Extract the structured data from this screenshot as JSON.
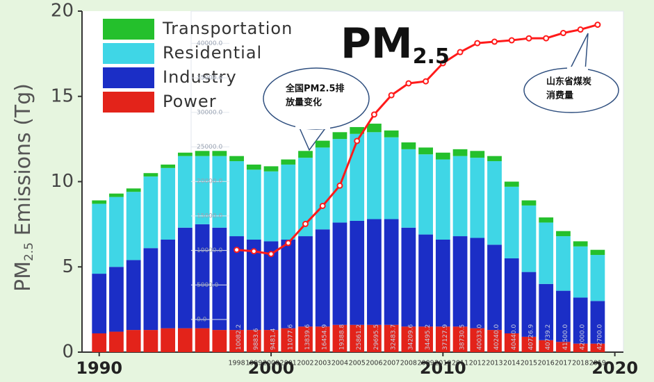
{
  "chart_data": [
    {
      "type": "bar",
      "stacked": true,
      "title": {
        "main": "PM",
        "sub": "2.5"
      },
      "ylabel": {
        "main": "PM",
        "sub": "2.5",
        "rest": " Emissions (Tg)"
      },
      "x": [
        1990,
        1991,
        1992,
        1993,
        1994,
        1995,
        1996,
        1997,
        1998,
        1999,
        2000,
        2001,
        2002,
        2003,
        2004,
        2005,
        2006,
        2007,
        2008,
        2009,
        2010,
        2011,
        2012,
        2013,
        2014,
        2015,
        2016,
        2017,
        2018,
        2019
      ],
      "xlim": [
        1989,
        2020.5
      ],
      "xticks": [
        1990,
        2000,
        2010,
        2020
      ],
      "ylim": [
        0,
        20
      ],
      "yticks": [
        0,
        5,
        10,
        15,
        20
      ],
      "legend": "top-left",
      "series": [
        {
          "name": "Power",
          "color": "#e3231a",
          "values": [
            1.1,
            1.2,
            1.3,
            1.3,
            1.4,
            1.4,
            1.4,
            1.3,
            1.3,
            1.3,
            1.3,
            1.4,
            1.5,
            1.5,
            1.6,
            1.6,
            1.6,
            1.6,
            1.5,
            1.5,
            1.5,
            1.5,
            1.4,
            1.3,
            1.1,
            0.9,
            0.7,
            0.6,
            0.5,
            0.5
          ]
        },
        {
          "name": "Industry",
          "color": "#1b2ec6",
          "values": [
            3.5,
            3.8,
            4.1,
            4.8,
            5.2,
            5.9,
            6.1,
            6.0,
            5.5,
            5.3,
            5.2,
            5.2,
            5.3,
            5.7,
            6.0,
            6.1,
            6.2,
            6.2,
            5.8,
            5.4,
            5.1,
            5.3,
            5.3,
            5.0,
            4.4,
            3.8,
            3.3,
            3.0,
            2.7,
            2.5
          ]
        },
        {
          "name": "Residential",
          "color": "#3fd6e6",
          "values": [
            4.1,
            4.1,
            4.0,
            4.2,
            4.2,
            4.2,
            4.0,
            4.2,
            4.4,
            4.1,
            4.1,
            4.4,
            4.6,
            4.8,
            4.9,
            5.1,
            5.1,
            4.8,
            4.6,
            4.7,
            4.7,
            4.7,
            4.7,
            4.9,
            4.2,
            3.9,
            3.6,
            3.2,
            3.0,
            2.7
          ]
        },
        {
          "name": "Transportation",
          "color": "#24c02c",
          "values": [
            0.2,
            0.2,
            0.2,
            0.2,
            0.2,
            0.2,
            0.3,
            0.3,
            0.3,
            0.3,
            0.3,
            0.3,
            0.4,
            0.4,
            0.4,
            0.4,
            0.5,
            0.4,
            0.4,
            0.4,
            0.4,
            0.4,
            0.4,
            0.3,
            0.3,
            0.3,
            0.3,
            0.3,
            0.3,
            0.3
          ]
        }
      ]
    },
    {
      "type": "line",
      "color": "#ff1a1a",
      "x": [
        1998,
        1999,
        2000,
        2001,
        2002,
        2003,
        2004,
        2005,
        2006,
        2007,
        2008,
        2009,
        2010,
        2011,
        2012,
        2013,
        2014,
        2015,
        2016,
        2017,
        2018,
        2019
      ],
      "values": [
        10082.2,
        9883.6,
        9481.4,
        11077.6,
        13839.6,
        16454.9,
        19388.8,
        25861.2,
        29695.5,
        32483.7,
        34209.6,
        34495.2,
        37127.9,
        38730.5,
        40033.0,
        40240.0,
        40440.0,
        40726.9,
        40739.2,
        41500.0,
        42000.0,
        42700.0
      ],
      "value_labels": [
        "10082.2",
        "9883.6",
        "9481.4",
        "11077.6",
        "13839.6",
        "16454.9",
        "19388.8",
        "25861.2",
        "29695.5",
        "32483.7",
        "34209.6",
        "34495.2",
        "37127.9",
        "38730.5",
        "40033.0",
        "40240.0",
        "40440.0",
        "40726.9",
        "40739.2",
        "41500.0",
        "42000.0",
        "42700.0"
      ],
      "y2lim": [
        -4730,
        44670
      ],
      "y2ticks": [
        {
          "value": 0,
          "label": "0.0"
        },
        {
          "value": 5000,
          "label": "5000.0"
        },
        {
          "value": 10000,
          "label": "10000.0"
        },
        {
          "value": 15000,
          "label": "15000.0"
        },
        {
          "value": 20000,
          "label": "20000.0"
        },
        {
          "value": 25000,
          "label": "25000.0"
        },
        {
          "value": 30000,
          "label": "30000.0"
        },
        {
          "value": 35000,
          "label": "35000.0"
        },
        {
          "value": 40000,
          "label": "40000.0"
        }
      ],
      "annotations": [
        {
          "lines": [
            "全国PM2.5排",
            "放量变化"
          ]
        },
        {
          "lines": [
            "山东省煤炭",
            "消费量"
          ]
        }
      ]
    }
  ]
}
